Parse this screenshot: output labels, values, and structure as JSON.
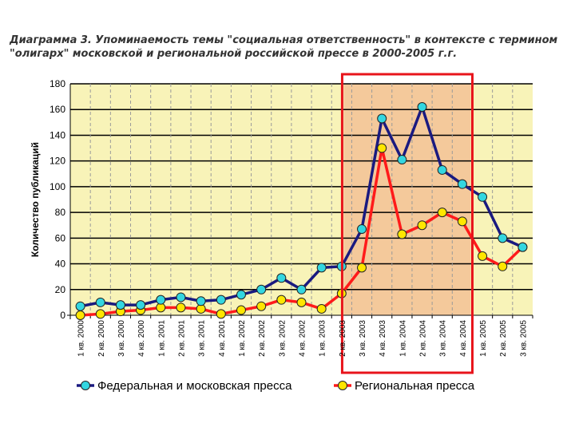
{
  "title_line1": "Диаграмма 3. Упоминаемость темы \"социальная ответственность\" в контексте с термином",
  "title_line2": "\"олигарх\" московской и региональной российской прессе в 2000-2005 г.г.",
  "colors": {
    "plot_bg": "#f8f3b8",
    "highlight_bg": "#f4c99b",
    "highlight_border": "#e8141b",
    "federal_line": "#1a1a80",
    "federal_marker": "#33d6e0",
    "regional_line": "#ff1a1a",
    "regional_marker": "#ffe600"
  },
  "chart_data": {
    "type": "line",
    "title": "",
    "xlabel": "",
    "ylabel": "Количество публикаций",
    "ylim": [
      0,
      180
    ],
    "yticks": [
      0,
      20,
      40,
      60,
      80,
      100,
      120,
      140,
      160,
      180
    ],
    "grid": true,
    "legend_position": "bottom",
    "categories": [
      "1 кв. 2000",
      "2 кв. 2000",
      "3 кв. 2000",
      "4 кв. 2000",
      "1 кв. 2001",
      "2 кв. 2001",
      "3 кв. 2001",
      "4 кв. 2001",
      "1 кв. 2002",
      "2 кв. 2002",
      "3 кв. 2002",
      "4 кв. 2002",
      "1 кв. 2003",
      "2 кв. 2003",
      "3 кв. 2003",
      "4 кв. 2003",
      "1 кв. 2004",
      "2 кв. 2004",
      "3 кв. 2004",
      "4 кв. 2004",
      "1 кв. 2005",
      "2 кв. 2005",
      "3 кв. 2005"
    ],
    "highlight_range": [
      "3 кв. 2003",
      "4 кв. 2004"
    ],
    "series": [
      {
        "name": "Федеральная и московская пресса",
        "values": [
          7,
          10,
          8,
          8,
          12,
          14,
          11,
          12,
          16,
          20,
          29,
          20,
          37,
          38,
          67,
          153,
          121,
          162,
          113,
          102,
          92,
          60,
          53
        ]
      },
      {
        "name": "Региональная пресса",
        "values": [
          0,
          1,
          3,
          4,
          6,
          6,
          5,
          1,
          4,
          7,
          12,
          10,
          5,
          17,
          37,
          130,
          63,
          70,
          80,
          73,
          46,
          38,
          53
        ]
      }
    ]
  }
}
